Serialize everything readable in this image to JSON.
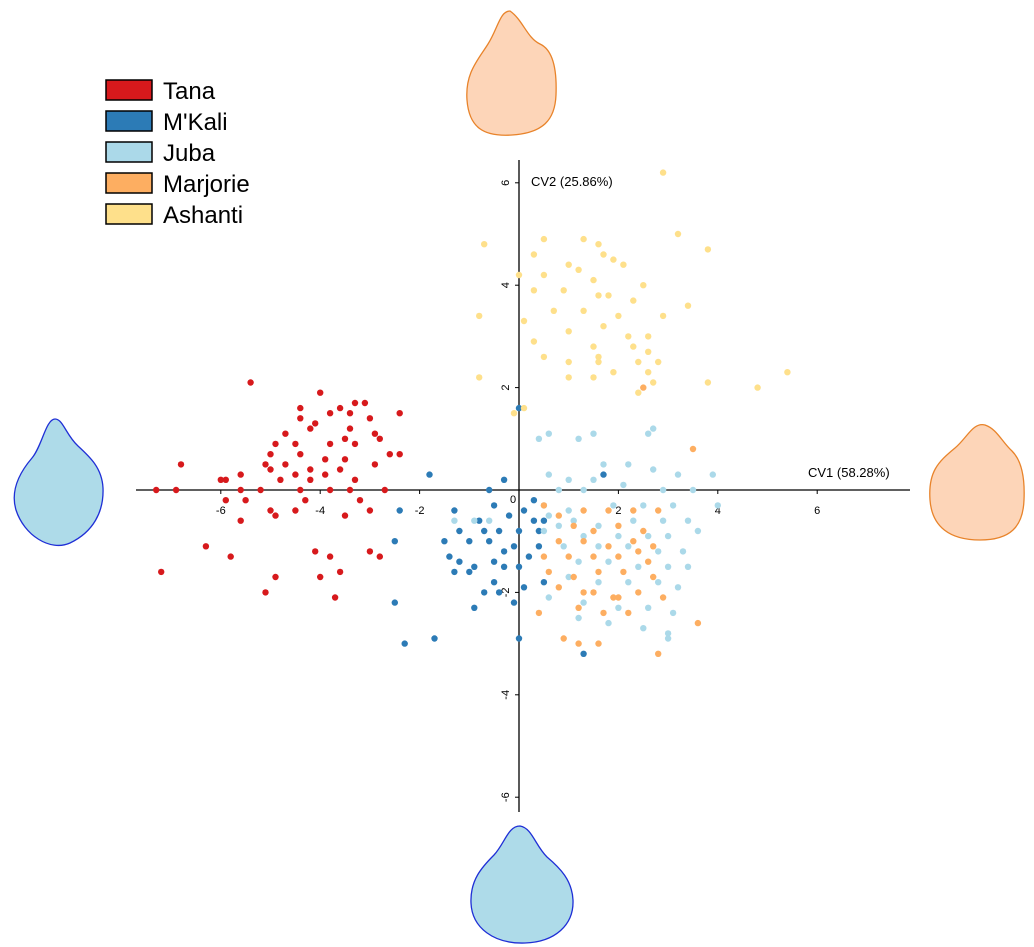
{
  "chart_data": {
    "type": "scatter",
    "xlabel": "CV1 (58.28%)",
    "ylabel": "CV2 (25.86%)",
    "xlim": [
      -7.5,
      7.5
    ],
    "ylim": [
      -6.5,
      6.5
    ],
    "xticks": [
      -6,
      -4,
      -2,
      0,
      2,
      4,
      6
    ],
    "yticks": [
      -6,
      -4,
      -2,
      2,
      4,
      6
    ],
    "origin_label": "0",
    "legend_position": "top-left",
    "series": [
      {
        "name": "Tana",
        "color": "#d7191c",
        "points": [
          [
            -4.0,
            1.9
          ],
          [
            -4.4,
            1.6
          ],
          [
            -3.3,
            1.7
          ],
          [
            -3.6,
            1.6
          ],
          [
            -3.1,
            1.7
          ],
          [
            -3.4,
            1.5
          ],
          [
            -2.4,
            1.5
          ],
          [
            -3.0,
            1.4
          ],
          [
            -4.4,
            1.4
          ],
          [
            -4.1,
            1.3
          ],
          [
            -3.8,
            1.5
          ],
          [
            -3.4,
            1.2
          ],
          [
            -4.2,
            1.2
          ],
          [
            -4.7,
            1.1
          ],
          [
            -3.5,
            1.0
          ],
          [
            -2.9,
            1.1
          ],
          [
            -2.8,
            1.0
          ],
          [
            -3.8,
            0.9
          ],
          [
            -4.9,
            0.9
          ],
          [
            -4.5,
            0.9
          ],
          [
            -3.3,
            0.9
          ],
          [
            -2.6,
            0.7
          ],
          [
            -2.4,
            0.7
          ],
          [
            -5.0,
            0.7
          ],
          [
            -4.4,
            0.7
          ],
          [
            -3.9,
            0.6
          ],
          [
            -3.5,
            0.6
          ],
          [
            -4.7,
            0.5
          ],
          [
            -5.1,
            0.5
          ],
          [
            -2.9,
            0.5
          ],
          [
            -5.0,
            0.4
          ],
          [
            -4.2,
            0.4
          ],
          [
            -3.6,
            0.4
          ],
          [
            -3.9,
            0.3
          ],
          [
            -5.6,
            0.3
          ],
          [
            -4.5,
            0.3
          ],
          [
            -4.8,
            0.2
          ],
          [
            -3.3,
            0.2
          ],
          [
            -4.2,
            0.2
          ],
          [
            -5.9,
            0.2
          ],
          [
            -6.0,
            0.2
          ],
          [
            -5.6,
            0.0
          ],
          [
            -5.2,
            0.0
          ],
          [
            -4.4,
            0.0
          ],
          [
            -3.8,
            0.0
          ],
          [
            -3.4,
            0.0
          ],
          [
            -2.7,
            0.0
          ],
          [
            -6.9,
            0.0
          ],
          [
            -7.3,
            0.0
          ],
          [
            -6.8,
            0.5
          ],
          [
            -5.4,
            2.1
          ],
          [
            -5.9,
            -0.2
          ],
          [
            -5.5,
            -0.2
          ],
          [
            -4.3,
            -0.2
          ],
          [
            -3.2,
            -0.2
          ],
          [
            -5.0,
            -0.4
          ],
          [
            -4.5,
            -0.4
          ],
          [
            -3.0,
            -0.4
          ],
          [
            -4.9,
            -0.5
          ],
          [
            -3.5,
            -0.5
          ],
          [
            -5.6,
            -0.6
          ],
          [
            -6.3,
            -1.1
          ],
          [
            -5.8,
            -1.3
          ],
          [
            -4.1,
            -1.2
          ],
          [
            -3.8,
            -1.3
          ],
          [
            -2.8,
            -1.3
          ],
          [
            -7.2,
            -1.6
          ],
          [
            -4.0,
            -1.7
          ],
          [
            -4.9,
            -1.7
          ],
          [
            -5.1,
            -2.0
          ],
          [
            -3.7,
            -2.1
          ],
          [
            -3.6,
            -1.6
          ],
          [
            -3.0,
            -1.2
          ]
        ]
      },
      {
        "name": "M'Kali",
        "color": "#2c7bb6",
        "points": [
          [
            -1.8,
            0.3
          ],
          [
            0.0,
            1.6
          ],
          [
            -0.6,
            0.0
          ],
          [
            -0.3,
            0.2
          ],
          [
            1.7,
            0.3
          ],
          [
            -0.5,
            -0.3
          ],
          [
            -1.3,
            -0.4
          ],
          [
            0.1,
            -0.4
          ],
          [
            -0.2,
            -0.5
          ],
          [
            0.3,
            -0.6
          ],
          [
            0.5,
            -0.6
          ],
          [
            -1.2,
            -0.8
          ],
          [
            -0.7,
            -0.8
          ],
          [
            -0.4,
            -0.8
          ],
          [
            0.0,
            -0.8
          ],
          [
            0.4,
            -0.8
          ],
          [
            -1.5,
            -1.0
          ],
          [
            -1.0,
            -1.0
          ],
          [
            -0.6,
            -1.0
          ],
          [
            -0.1,
            -1.1
          ],
          [
            0.4,
            -1.1
          ],
          [
            -1.4,
            -1.3
          ],
          [
            -1.2,
            -1.4
          ],
          [
            -0.5,
            -1.4
          ],
          [
            -0.3,
            -1.5
          ],
          [
            0.0,
            -1.5
          ],
          [
            -1.3,
            -1.6
          ],
          [
            -1.0,
            -1.6
          ],
          [
            -0.5,
            -1.8
          ],
          [
            0.1,
            -1.9
          ],
          [
            -0.7,
            -2.0
          ],
          [
            -0.4,
            -2.0
          ],
          [
            -0.1,
            -2.2
          ],
          [
            0.5,
            -1.8
          ],
          [
            -2.5,
            -2.2
          ],
          [
            -2.3,
            -3.0
          ],
          [
            -1.7,
            -2.9
          ],
          [
            -0.9,
            -2.3
          ],
          [
            0.0,
            -2.9
          ],
          [
            1.3,
            -3.2
          ],
          [
            -2.5,
            -1.0
          ],
          [
            -2.4,
            -0.4
          ],
          [
            -0.8,
            -0.6
          ],
          [
            0.3,
            -0.2
          ],
          [
            -0.3,
            -1.2
          ],
          [
            0.2,
            -1.3
          ],
          [
            -0.9,
            -1.5
          ]
        ]
      },
      {
        "name": "Juba",
        "color": "#abd9e9",
        "points": [
          [
            0.4,
            1.0
          ],
          [
            0.6,
            1.1
          ],
          [
            1.2,
            1.0
          ],
          [
            1.5,
            1.1
          ],
          [
            2.6,
            1.1
          ],
          [
            2.7,
            1.2
          ],
          [
            1.7,
            0.5
          ],
          [
            2.2,
            0.5
          ],
          [
            2.7,
            0.4
          ],
          [
            3.2,
            0.3
          ],
          [
            3.9,
            0.3
          ],
          [
            0.6,
            0.3
          ],
          [
            1.0,
            0.2
          ],
          [
            1.5,
            0.2
          ],
          [
            0.8,
            0.0
          ],
          [
            1.3,
            0.0
          ],
          [
            2.1,
            0.1
          ],
          [
            2.9,
            0.0
          ],
          [
            3.5,
            0.0
          ],
          [
            0.5,
            -0.3
          ],
          [
            1.0,
            -0.4
          ],
          [
            1.9,
            -0.3
          ],
          [
            2.5,
            -0.3
          ],
          [
            3.1,
            -0.3
          ],
          [
            4.0,
            -0.3
          ],
          [
            1.1,
            -0.6
          ],
          [
            1.6,
            -0.7
          ],
          [
            2.3,
            -0.6
          ],
          [
            2.9,
            -0.6
          ],
          [
            3.4,
            -0.6
          ],
          [
            0.5,
            -0.8
          ],
          [
            1.3,
            -0.9
          ],
          [
            2.0,
            -0.9
          ],
          [
            2.6,
            -0.9
          ],
          [
            3.0,
            -0.9
          ],
          [
            3.6,
            -0.8
          ],
          [
            0.9,
            -1.1
          ],
          [
            1.6,
            -1.1
          ],
          [
            2.2,
            -1.1
          ],
          [
            2.8,
            -1.2
          ],
          [
            3.3,
            -1.2
          ],
          [
            1.2,
            -1.4
          ],
          [
            1.8,
            -1.4
          ],
          [
            2.4,
            -1.5
          ],
          [
            3.0,
            -1.5
          ],
          [
            3.4,
            -1.5
          ],
          [
            1.0,
            -1.7
          ],
          [
            1.6,
            -1.8
          ],
          [
            2.2,
            -1.8
          ],
          [
            2.8,
            -1.8
          ],
          [
            3.2,
            -1.9
          ],
          [
            0.6,
            -2.1
          ],
          [
            1.3,
            -2.2
          ],
          [
            2.0,
            -2.3
          ],
          [
            2.6,
            -2.3
          ],
          [
            3.1,
            -2.4
          ],
          [
            1.2,
            -2.5
          ],
          [
            1.8,
            -2.6
          ],
          [
            2.5,
            -2.7
          ],
          [
            3.0,
            -2.8
          ],
          [
            3.0,
            -2.9
          ],
          [
            -0.6,
            -0.6
          ],
          [
            -1.3,
            -0.6
          ],
          [
            -0.9,
            -0.6
          ],
          [
            0.6,
            -0.5
          ],
          [
            0.8,
            -0.7
          ]
        ]
      },
      {
        "name": "Marjorie",
        "color": "#fdae61",
        "points": [
          [
            2.5,
            2.0
          ],
          [
            3.5,
            0.8
          ],
          [
            0.5,
            -0.3
          ],
          [
            0.8,
            -0.5
          ],
          [
            1.3,
            -0.4
          ],
          [
            1.8,
            -0.4
          ],
          [
            2.3,
            -0.4
          ],
          [
            2.8,
            -0.4
          ],
          [
            1.1,
            -0.7
          ],
          [
            1.5,
            -0.8
          ],
          [
            2.0,
            -0.7
          ],
          [
            2.5,
            -0.8
          ],
          [
            0.8,
            -1.0
          ],
          [
            1.3,
            -1.0
          ],
          [
            1.8,
            -1.1
          ],
          [
            2.3,
            -1.0
          ],
          [
            2.7,
            -1.1
          ],
          [
            0.5,
            -1.3
          ],
          [
            1.0,
            -1.3
          ],
          [
            1.5,
            -1.3
          ],
          [
            2.0,
            -1.3
          ],
          [
            2.6,
            -1.4
          ],
          [
            0.6,
            -1.6
          ],
          [
            1.1,
            -1.7
          ],
          [
            1.6,
            -1.6
          ],
          [
            2.1,
            -1.6
          ],
          [
            2.7,
            -1.7
          ],
          [
            0.8,
            -1.9
          ],
          [
            1.3,
            -2.0
          ],
          [
            1.9,
            -2.1
          ],
          [
            2.4,
            -2.0
          ],
          [
            2.9,
            -2.1
          ],
          [
            1.2,
            -2.3
          ],
          [
            1.7,
            -2.4
          ],
          [
            2.2,
            -2.4
          ],
          [
            0.4,
            -2.4
          ],
          [
            0.9,
            -2.9
          ],
          [
            1.2,
            -3.0
          ],
          [
            1.6,
            -3.0
          ],
          [
            3.6,
            -2.6
          ],
          [
            2.8,
            -3.2
          ],
          [
            2.0,
            -2.1
          ],
          [
            1.5,
            -2.0
          ],
          [
            2.4,
            -1.2
          ]
        ]
      },
      {
        "name": "Ashanti",
        "color": "#fee08b",
        "points": [
          [
            2.9,
            6.2
          ],
          [
            0.5,
            4.9
          ],
          [
            1.3,
            4.9
          ],
          [
            1.6,
            4.8
          ],
          [
            3.2,
            5.0
          ],
          [
            3.8,
            4.7
          ],
          [
            -0.7,
            4.8
          ],
          [
            0.3,
            4.6
          ],
          [
            1.7,
            4.6
          ],
          [
            1.9,
            4.5
          ],
          [
            1.0,
            4.4
          ],
          [
            1.2,
            4.3
          ],
          [
            2.1,
            4.4
          ],
          [
            0.0,
            4.2
          ],
          [
            0.5,
            4.2
          ],
          [
            1.5,
            4.1
          ],
          [
            2.5,
            4.0
          ],
          [
            0.3,
            3.9
          ],
          [
            0.9,
            3.9
          ],
          [
            1.6,
            3.8
          ],
          [
            1.8,
            3.8
          ],
          [
            2.3,
            3.7
          ],
          [
            0.7,
            3.5
          ],
          [
            1.3,
            3.5
          ],
          [
            2.0,
            3.4
          ],
          [
            2.9,
            3.4
          ],
          [
            3.4,
            3.6
          ],
          [
            -0.8,
            3.4
          ],
          [
            0.1,
            3.3
          ],
          [
            1.7,
            3.2
          ],
          [
            1.0,
            3.1
          ],
          [
            2.2,
            3.0
          ],
          [
            2.6,
            3.0
          ],
          [
            0.3,
            2.9
          ],
          [
            1.5,
            2.8
          ],
          [
            2.3,
            2.8
          ],
          [
            2.6,
            2.7
          ],
          [
            1.6,
            2.6
          ],
          [
            0.5,
            2.6
          ],
          [
            1.0,
            2.5
          ],
          [
            2.4,
            2.5
          ],
          [
            2.8,
            2.5
          ],
          [
            1.9,
            2.3
          ],
          [
            2.6,
            2.3
          ],
          [
            3.8,
            2.1
          ],
          [
            -0.8,
            2.2
          ],
          [
            1.0,
            2.2
          ],
          [
            1.5,
            2.2
          ],
          [
            2.7,
            2.1
          ],
          [
            5.4,
            2.3
          ],
          [
            4.8,
            2.0
          ],
          [
            0.1,
            1.6
          ],
          [
            -0.1,
            1.5
          ],
          [
            1.6,
            2.5
          ],
          [
            2.4,
            1.9
          ]
        ]
      }
    ]
  },
  "legend": {
    "items": [
      {
        "label": "Tana",
        "color": "#d7191c"
      },
      {
        "label": "M'Kali",
        "color": "#2c7bb6"
      },
      {
        "label": "Juba",
        "color": "#abd9e9"
      },
      {
        "label": "Marjorie",
        "color": "#fdae61"
      },
      {
        "label": "Ashanti",
        "color": "#fee08b"
      }
    ]
  },
  "shapes": {
    "top": {
      "fill": "#fdd5b8",
      "stroke": "#e8832a"
    },
    "right": {
      "fill": "#fdd5b8",
      "stroke": "#e8832a"
    },
    "left": {
      "fill": "#aedbe9",
      "stroke": "#1f2fd6"
    },
    "bottom": {
      "fill": "#aedbe9",
      "stroke": "#1f2fd6"
    }
  }
}
